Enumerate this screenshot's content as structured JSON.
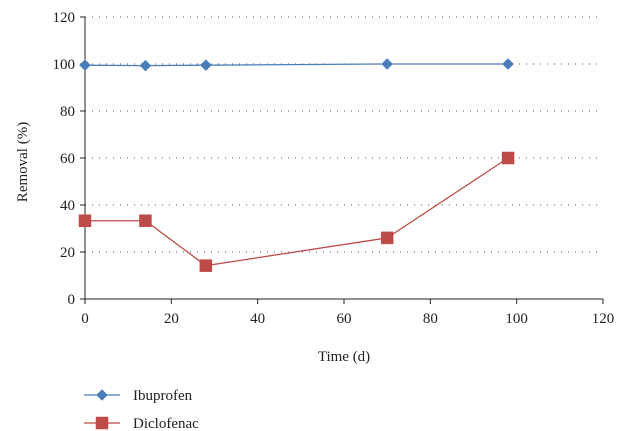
{
  "chart_data": {
    "type": "line",
    "title": "",
    "xlabel": "Time (d)",
    "ylabel": "Removal (%)",
    "xlim": [
      0,
      120
    ],
    "ylim": [
      0,
      120
    ],
    "xticks": [
      0,
      20,
      40,
      60,
      80,
      100,
      120
    ],
    "yticks": [
      0,
      20,
      40,
      60,
      80,
      100,
      120
    ],
    "grid": "horizontal-dotted",
    "legend_position": "bottom-left",
    "series": [
      {
        "name": "Ibuprofen",
        "color": "#4a7ebb",
        "marker": "diamond",
        "x": [
          0,
          14,
          28,
          70,
          98
        ],
        "y": [
          99.5,
          99.3,
          99.5,
          100,
          100
        ]
      },
      {
        "name": "Diclofenac",
        "color": "#be4b48",
        "marker": "square",
        "x": [
          0,
          14,
          28,
          70,
          98
        ],
        "y": [
          33.3,
          33.3,
          14.2,
          26,
          60
        ]
      }
    ]
  }
}
